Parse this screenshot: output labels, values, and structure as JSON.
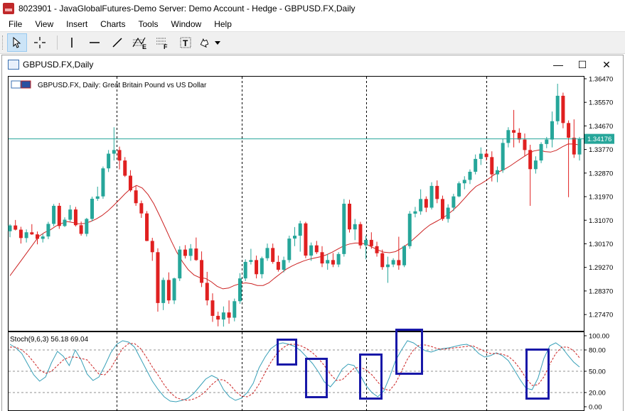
{
  "app": {
    "title": "8023901 - JavaGlobalFutures-Demo Server: Demo Account - Hedge - GBPUSD.FX,Daily"
  },
  "menu": [
    "File",
    "View",
    "Insert",
    "Charts",
    "Tools",
    "Window",
    "Help"
  ],
  "toolbar": {
    "tools": [
      "cursor-arrow-icon",
      "crosshair-icon",
      "vertical-line-icon",
      "horizontal-line-icon",
      "trend-line-icon",
      "fibonacci-expansion-icon",
      "fibonacci-fan-icon",
      "text-label-icon",
      "arrow-shapes-icon",
      "dropdown-arrow-icon"
    ],
    "fib_e_letter": "E",
    "fib_f_letter": "F",
    "text_tool_letter": "T"
  },
  "chart_window": {
    "title": "GBPUSD.FX,Daily",
    "minimize": "—",
    "maximize": "☐",
    "close": "✕"
  },
  "chart_data": {
    "type": "candlestick",
    "symbol_label": "GBPUSD.FX, Daily:  Great Britain Pound vs US Dollar",
    "price_ticks": [
      "1.36470",
      "1.35570",
      "1.34670",
      "1.33770",
      "1.32870",
      "1.31970",
      "1.31070",
      "1.30170",
      "1.29270",
      "1.28370",
      "1.27470"
    ],
    "y_range": [
      1.2685,
      1.3655
    ],
    "current_price": 1.34176,
    "current_price_label": "1.34176",
    "colors": {
      "bull": "#26a69a",
      "bear": "#e02020",
      "ma": "#cc2222",
      "grid": "#000000",
      "price_line": "#26a69a"
    },
    "ma_values": [
      1.2895,
      1.2925,
      1.2955,
      1.2985,
      1.3015,
      1.3045,
      1.306,
      1.307,
      1.3085,
      1.3095,
      1.3102,
      1.3098,
      1.3093,
      1.3095,
      1.3102,
      1.3112,
      1.3125,
      1.3142,
      1.3163,
      1.3185,
      1.3208,
      1.3228,
      1.324,
      1.323,
      1.3205,
      1.317,
      1.3125,
      1.3078,
      1.303,
      1.2985,
      1.2948,
      1.2918,
      1.2898,
      1.2888,
      1.2885,
      1.2872,
      1.2855,
      1.2845,
      1.2848,
      1.2858,
      1.2865,
      1.2868,
      1.2865,
      1.2858,
      1.2858,
      1.2868,
      1.2886,
      1.2903,
      1.292,
      1.2932,
      1.2942,
      1.2951,
      1.2958,
      1.2963,
      1.2968,
      1.2975,
      1.2985,
      1.2997,
      1.3009,
      1.3016,
      1.302,
      1.302,
      1.3015,
      1.3004,
      1.2993,
      1.2985,
      1.2983,
      1.2987,
      1.2999,
      1.3014,
      1.3032,
      1.3052,
      1.3072,
      1.3089,
      1.3101,
      1.3113,
      1.3127,
      1.3145,
      1.3166,
      1.319,
      1.3215,
      1.3236,
      1.3248,
      1.3262,
      1.3278,
      1.3292,
      1.3302,
      1.3315,
      1.333,
      1.3345,
      1.3359,
      1.3371,
      1.3375,
      1.3369,
      1.3367,
      1.3374,
      1.3387,
      1.3398,
      1.3398,
      1.3394
    ],
    "candles": [
      [
        1.3065,
        1.3092,
        1.3042,
        1.3087
      ],
      [
        1.3087,
        1.3108,
        1.3068,
        1.3071
      ],
      [
        1.3071,
        1.3082,
        1.3018,
        1.3039
      ],
      [
        1.3039,
        1.3072,
        1.3022,
        1.3061
      ],
      [
        1.3061,
        1.3092,
        1.3051,
        1.3053
      ],
      [
        1.3053,
        1.3064,
        1.3015,
        1.3036
      ],
      [
        1.3036,
        1.3055,
        1.3022,
        1.3045
      ],
      [
        1.3045,
        1.3101,
        1.3035,
        1.3093
      ],
      [
        1.3093,
        1.3169,
        1.3084,
        1.3162
      ],
      [
        1.3162,
        1.3173,
        1.3074,
        1.3085
      ],
      [
        1.3085,
        1.3118,
        1.3081,
        1.3109
      ],
      [
        1.3109,
        1.3165,
        1.3102,
        1.3148
      ],
      [
        1.3148,
        1.3158,
        1.3083,
        1.3088
      ],
      [
        1.3088,
        1.3102,
        1.3048,
        1.3055
      ],
      [
        1.3055,
        1.3116,
        1.3045,
        1.3112
      ],
      [
        1.3112,
        1.3197,
        1.3103,
        1.3189
      ],
      [
        1.3189,
        1.3235,
        1.3181,
        1.3198
      ],
      [
        1.3198,
        1.3312,
        1.3189,
        1.3305
      ],
      [
        1.3305,
        1.3375,
        1.3291,
        1.3361
      ],
      [
        1.3361,
        1.3462,
        1.3335,
        1.3375
      ],
      [
        1.3375,
        1.3388,
        1.3301,
        1.3335
      ],
      [
        1.3335,
        1.3348,
        1.3272,
        1.3277
      ],
      [
        1.3277,
        1.3298,
        1.3215,
        1.3221
      ],
      [
        1.3221,
        1.3238,
        1.3162,
        1.3172
      ],
      [
        1.3172,
        1.3182,
        1.3116,
        1.3133
      ],
      [
        1.3133,
        1.3142,
        1.3027,
        1.3028
      ],
      [
        1.3028,
        1.304,
        1.2952,
        1.2985
      ],
      [
        1.2985,
        1.3,
        1.2758,
        1.2791
      ],
      [
        1.2791,
        1.2888,
        1.2764,
        1.2879
      ],
      [
        1.2879,
        1.2908,
        1.2788,
        1.2801
      ],
      [
        1.2801,
        1.2888,
        1.2787,
        1.2885
      ],
      [
        1.2885,
        1.3008,
        1.2875,
        1.2995
      ],
      [
        1.2995,
        1.3012,
        1.2961,
        1.2971
      ],
      [
        1.2971,
        1.3016,
        1.2952,
        1.2999
      ],
      [
        1.2999,
        1.3041,
        1.2952,
        1.2955
      ],
      [
        1.2955,
        1.2988,
        1.2852,
        1.2868
      ],
      [
        1.2868,
        1.291,
        1.2782,
        1.2801
      ],
      [
        1.2801,
        1.2828,
        1.2719,
        1.2742
      ],
      [
        1.2742,
        1.2758,
        1.2702,
        1.2728
      ],
      [
        1.2728,
        1.2778,
        1.2701,
        1.2755
      ],
      [
        1.2755,
        1.2801,
        1.2712,
        1.2735
      ],
      [
        1.2735,
        1.2808,
        1.2721,
        1.2798
      ],
      [
        1.2798,
        1.2905,
        1.2788,
        1.2885
      ],
      [
        1.2885,
        1.2958,
        1.2875,
        1.2948
      ],
      [
        1.2948,
        1.2998,
        1.2938,
        1.2955
      ],
      [
        1.2955,
        1.2972,
        1.2885,
        1.2901
      ],
      [
        1.2901,
        1.2968,
        1.2885,
        1.2962
      ],
      [
        1.2962,
        1.3018,
        1.2952,
        1.3001
      ],
      [
        1.3001,
        1.3018,
        1.2941,
        1.2948
      ],
      [
        1.2948,
        1.2972,
        1.2911,
        1.2918
      ],
      [
        1.2918,
        1.2968,
        1.2908,
        1.2955
      ],
      [
        1.2955,
        1.3048,
        1.2945,
        1.3037
      ],
      [
        1.3037,
        1.3081,
        1.3008,
        1.3048
      ],
      [
        1.3048,
        1.3105,
        1.2987,
        1.3095
      ],
      [
        1.3095,
        1.3101,
        1.2962,
        1.2972
      ],
      [
        1.2972,
        1.3022,
        1.2952,
        1.3011
      ],
      [
        1.3011,
        1.3028,
        1.2978,
        1.2985
      ],
      [
        1.2985,
        1.3008,
        1.2928,
        1.2942
      ],
      [
        1.2942,
        1.2978,
        1.2918,
        1.2955
      ],
      [
        1.2955,
        1.2982,
        1.2928,
        1.2938
      ],
      [
        1.2938,
        1.2985,
        1.2928,
        1.2978
      ],
      [
        1.2978,
        1.3188,
        1.2968,
        1.317
      ],
      [
        1.317,
        1.3185,
        1.306,
        1.3072
      ],
      [
        1.3072,
        1.3112,
        1.3031,
        1.3092
      ],
      [
        1.3092,
        1.3101,
        1.2998,
        1.3011
      ],
      [
        1.3011,
        1.3048,
        1.2958,
        1.3032
      ],
      [
        1.3032,
        1.3061,
        1.2998,
        1.3008
      ],
      [
        1.3008,
        1.3025,
        1.2968,
        1.2981
      ],
      [
        1.2981,
        1.2995,
        1.2918,
        1.2928
      ],
      [
        1.2928,
        1.2968,
        1.2868,
        1.2938
      ],
      [
        1.2938,
        1.2962,
        1.2928,
        1.2955
      ],
      [
        1.2955,
        1.3044,
        1.2918,
        1.2935
      ],
      [
        1.2935,
        1.3012,
        1.2928,
        1.3008
      ],
      [
        1.3008,
        1.3142,
        1.2998,
        1.3132
      ],
      [
        1.3132,
        1.3158,
        1.3118,
        1.3141
      ],
      [
        1.3141,
        1.3225,
        1.3128,
        1.3188
      ],
      [
        1.3188,
        1.3198,
        1.3138,
        1.3155
      ],
      [
        1.3155,
        1.3252,
        1.3148,
        1.3238
      ],
      [
        1.3238,
        1.3259,
        1.3172,
        1.3188
      ],
      [
        1.3188,
        1.3201,
        1.3105,
        1.3112
      ],
      [
        1.3112,
        1.3168,
        1.3098,
        1.3155
      ],
      [
        1.3155,
        1.3208,
        1.3142,
        1.3198
      ],
      [
        1.3198,
        1.3255,
        1.3195,
        1.3248
      ],
      [
        1.3248,
        1.3275,
        1.3225,
        1.3261
      ],
      [
        1.3261,
        1.3301,
        1.3245,
        1.3292
      ],
      [
        1.3292,
        1.3358,
        1.3282,
        1.3341
      ],
      [
        1.3341,
        1.3385,
        1.3318,
        1.3361
      ],
      [
        1.3361,
        1.3375,
        1.3335,
        1.3348
      ],
      [
        1.3348,
        1.337,
        1.3255,
        1.3282
      ],
      [
        1.3282,
        1.3312,
        1.3252,
        1.3298
      ],
      [
        1.3298,
        1.3418,
        1.3288,
        1.3402
      ],
      [
        1.3402,
        1.3462,
        1.3385,
        1.3451
      ],
      [
        1.3451,
        1.3528,
        1.3385,
        1.3441
      ],
      [
        1.3441,
        1.3458,
        1.3402,
        1.3415
      ],
      [
        1.3415,
        1.3438,
        1.3352,
        1.3375
      ],
      [
        1.3375,
        1.3395,
        1.3162,
        1.3302
      ],
      [
        1.3302,
        1.3351,
        1.3285,
        1.3335
      ],
      [
        1.3335,
        1.3405,
        1.3325,
        1.3398
      ],
      [
        1.3398,
        1.3425,
        1.3382,
        1.3415
      ],
      [
        1.3415,
        1.3522,
        1.3385,
        1.3485
      ],
      [
        1.3485,
        1.3628,
        1.3472,
        1.3582
      ],
      [
        1.3582,
        1.3594,
        1.3458,
        1.3478
      ],
      [
        1.3478,
        1.3488,
        1.3195,
        1.3422
      ],
      [
        1.3422,
        1.3492,
        1.3345,
        1.3358
      ],
      [
        1.3358,
        1.3425,
        1.3335,
        1.3418
      ]
    ],
    "stoch": {
      "label": "Stoch(9,6,3) 56.18 69.04",
      "ticks": [
        "100.00",
        "80.00",
        "50.00",
        "20.00",
        "0.00"
      ],
      "colors": {
        "main": "#38a0b8",
        "signal": "#cc2222",
        "level": "#909090"
      },
      "main": [
        88,
        83,
        75,
        60,
        45,
        36,
        42,
        62,
        78,
        71,
        58,
        80,
        66,
        46,
        37,
        42,
        58,
        76,
        88,
        93,
        91,
        84,
        68,
        52,
        36,
        24,
        14,
        8,
        7,
        9,
        12,
        19,
        29,
        39,
        44,
        40,
        24,
        14,
        9,
        12,
        20,
        33,
        55,
        70,
        82,
        88,
        90,
        88,
        85,
        79,
        70,
        61,
        49,
        35,
        28,
        38,
        53,
        60,
        58,
        45,
        30,
        20,
        14,
        22,
        42,
        65,
        80,
        93,
        90,
        84,
        79,
        77,
        80,
        82,
        83,
        85,
        87,
        88,
        84,
        75,
        70,
        72,
        76,
        72,
        65,
        52,
        38,
        26,
        24,
        40,
        68,
        86,
        90,
        84,
        73,
        63,
        56
      ],
      "signal": [
        84,
        84,
        80,
        73,
        63,
        52,
        47,
        50,
        58,
        66,
        70,
        70,
        68,
        66,
        56,
        46,
        45,
        54,
        69,
        82,
        89,
        89,
        82,
        70,
        56,
        44,
        31,
        20,
        13,
        10,
        9,
        11,
        15,
        22,
        31,
        38,
        38,
        32,
        22,
        15,
        14,
        19,
        32,
        48,
        63,
        75,
        83,
        88,
        88,
        86,
        82,
        76,
        68,
        58,
        46,
        37,
        38,
        46,
        54,
        56,
        52,
        45,
        35,
        25,
        23,
        33,
        50,
        67,
        80,
        87,
        87,
        85,
        82,
        81,
        82,
        83,
        84,
        85,
        86,
        82,
        78,
        75,
        75,
        74,
        71,
        64,
        53,
        40,
        30,
        31,
        42,
        60,
        75,
        84,
        84,
        79,
        69
      ]
    }
  }
}
